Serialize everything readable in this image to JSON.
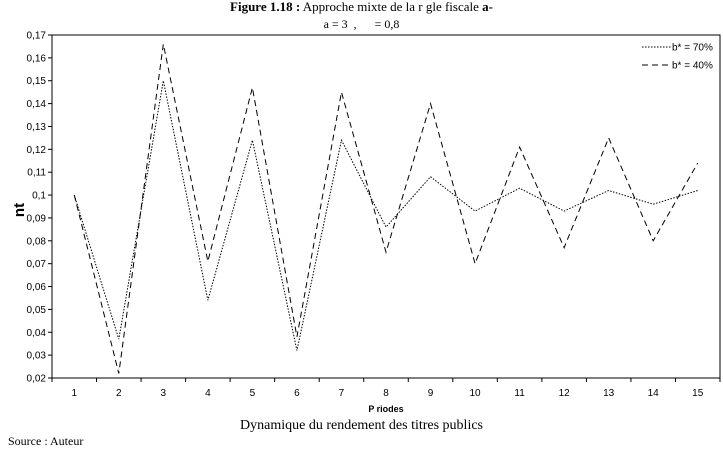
{
  "figure": {
    "title_bold": "Figure 1.18 :",
    "title_rest": "Approche mixte de la r  gle fiscale",
    "title_suffix": "a-",
    "subtitle": "a = 3  ,      = 0,8",
    "caption": "Dynamique du rendement des titres publics",
    "source": "Source : Auteur"
  },
  "chart_data": {
    "type": "line",
    "title": "",
    "xlabel": "P  riodes",
    "ylabel": "nt",
    "x": [
      1,
      2,
      3,
      4,
      5,
      6,
      7,
      8,
      9,
      10,
      11,
      12,
      13,
      14,
      15
    ],
    "ylim": [
      0.02,
      0.17
    ],
    "yticks": [
      "0,17",
      "0,16",
      "0,15",
      "0,14",
      "0,13",
      "0,12",
      "0,11",
      "0,1",
      "0,09",
      "0,08",
      "0,07",
      "0,06",
      "0,05",
      "0,04",
      "0,03",
      "0,02"
    ],
    "ytick_values": [
      0.17,
      0.16,
      0.15,
      0.14,
      0.13,
      0.12,
      0.11,
      0.1,
      0.09,
      0.08,
      0.07,
      0.06,
      0.05,
      0.04,
      0.03,
      0.02
    ],
    "grid": false,
    "legend_position": "top-right",
    "series": [
      {
        "name": "b* = 70%",
        "style": "dotted",
        "color": "#000000",
        "values": [
          0.1,
          0.037,
          0.15,
          0.054,
          0.124,
          0.032,
          0.124,
          0.086,
          0.108,
          0.093,
          0.103,
          0.093,
          0.102,
          0.096,
          0.102
        ]
      },
      {
        "name": "b* = 40%",
        "style": "dashed",
        "color": "#000000",
        "values": [
          0.1,
          0.022,
          0.166,
          0.071,
          0.147,
          0.038,
          0.145,
          0.075,
          0.14,
          0.07,
          0.121,
          0.077,
          0.125,
          0.08,
          0.114
        ]
      }
    ]
  }
}
